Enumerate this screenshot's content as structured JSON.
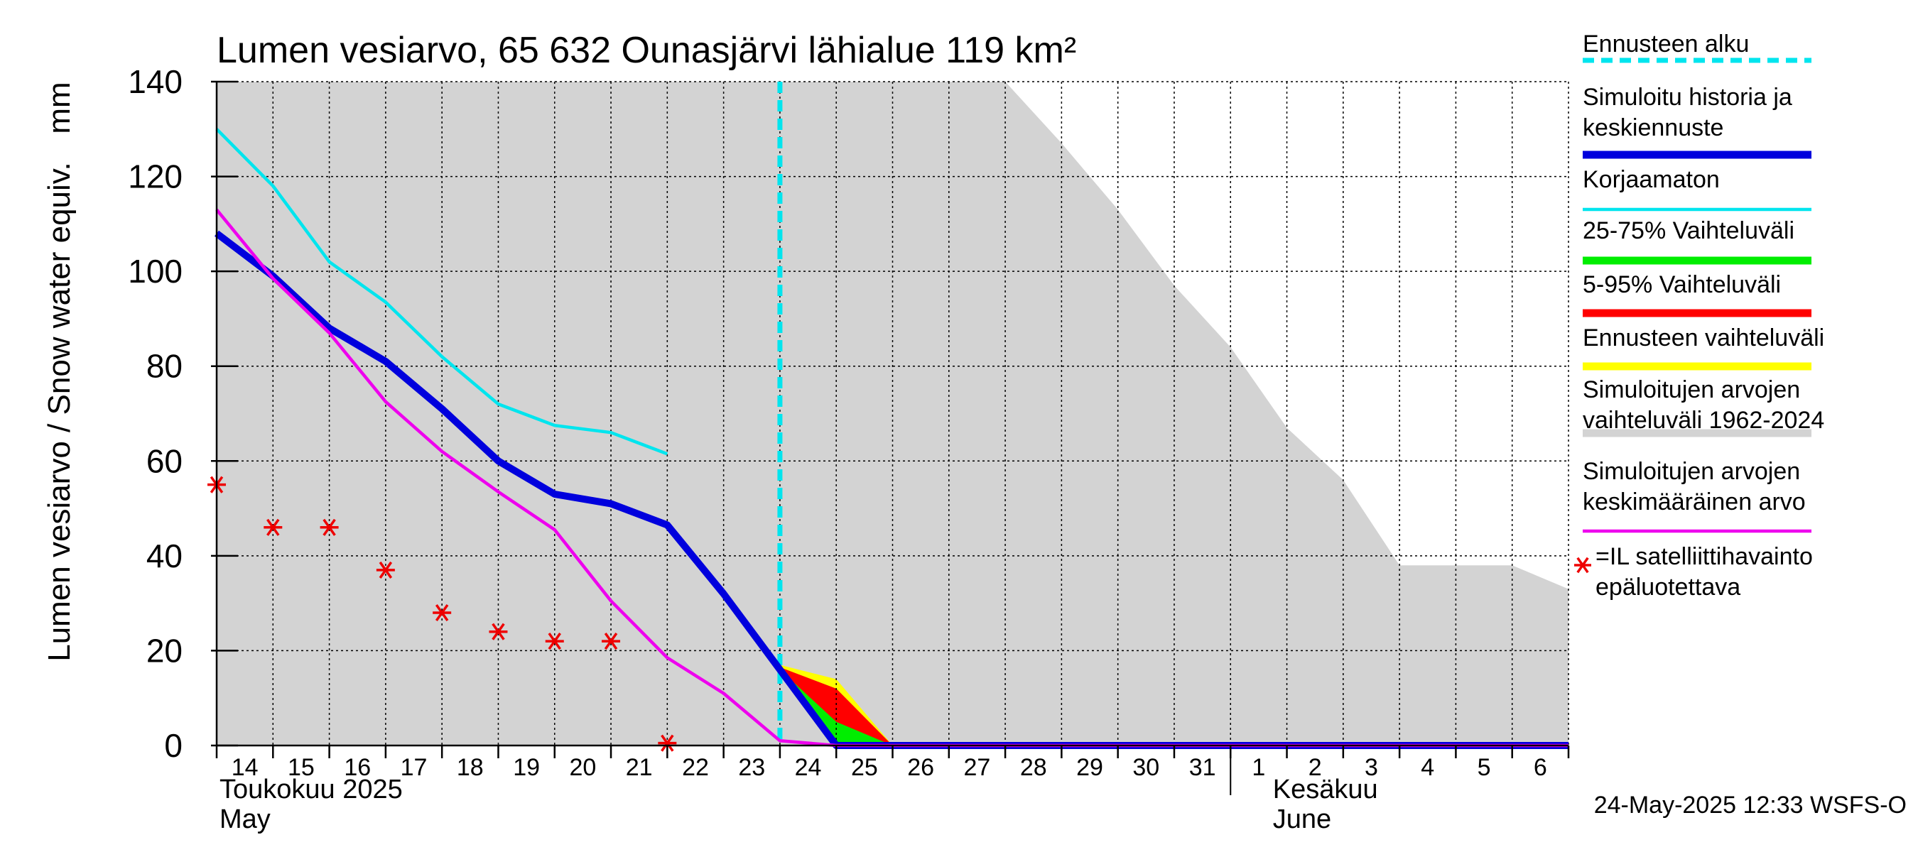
{
  "chart_data": {
    "type": "line",
    "title": "Lumen vesiarvo, 65 632 Ounasjärvi lähialue 119 km²",
    "ylabel": "Lumen vesiarvo / Snow water equiv.",
    "yunit": "mm",
    "ylim": [
      0,
      140
    ],
    "yticks": [
      0,
      20,
      40,
      60,
      80,
      100,
      120,
      140
    ],
    "x_days": [
      "14",
      "15",
      "16",
      "17",
      "18",
      "19",
      "20",
      "21",
      "22",
      "23",
      "24",
      "25",
      "26",
      "27",
      "28",
      "29",
      "30",
      "31",
      "1",
      "2",
      "3",
      "4",
      "5",
      "6"
    ],
    "x_range": [
      0,
      24
    ],
    "month_labels": [
      {
        "name": "Toukokuu  2025",
        "name_en": "May"
      },
      {
        "name": "Kesäkuu",
        "name_en": "June"
      }
    ],
    "month_break_x": 18,
    "grid": true,
    "legend_position": "right",
    "forecast_start_x": 10,
    "series": [
      {
        "name": "Simuloitu historia ja keskiennuste",
        "color": "#0000dd",
        "x": [
          0,
          1,
          2,
          3,
          4,
          5,
          6,
          7,
          8,
          9,
          10,
          11,
          12,
          24
        ],
        "y": [
          108,
          99,
          88,
          81,
          71,
          60,
          53,
          51,
          46.5,
          32,
          16,
          0,
          0,
          0
        ]
      },
      {
        "name": "Korjaamaton",
        "color": "#00e5ee",
        "x": [
          0,
          1,
          2,
          3,
          4,
          5,
          6,
          7,
          8
        ],
        "y": [
          130,
          118,
          102,
          93.5,
          82,
          72,
          67.5,
          66,
          61.5
        ]
      },
      {
        "name": "Simuloitujen arvojen keskimääräinen arvo",
        "color": "#ee00ee",
        "x": [
          0,
          1,
          2,
          3,
          4,
          5,
          6,
          7,
          8,
          9,
          10,
          11,
          12,
          24
        ],
        "y": [
          113,
          98.5,
          87,
          72.5,
          62,
          53.5,
          45.5,
          30.5,
          18.5,
          11,
          1,
          0,
          0,
          0
        ]
      },
      {
        "name": "=IL satelliittihavainto epäluotettava",
        "color": "#ee0000",
        "x": [
          0,
          1,
          2,
          3,
          4,
          5,
          6,
          7,
          8
        ],
        "y": [
          55,
          46,
          46,
          37,
          28,
          24,
          22,
          22,
          0.5
        ]
      }
    ],
    "bands": [
      {
        "name": "Simuloitujen arvojen vaihteluväli 1962-2024",
        "color": "#d3d3d3",
        "x": [
          0,
          1,
          2,
          3,
          4,
          5,
          6,
          7,
          8,
          9,
          10,
          11,
          12,
          13,
          14,
          15,
          16,
          17,
          18,
          19,
          20,
          21,
          22,
          23,
          24
        ],
        "upper": [
          140,
          140,
          140,
          140,
          140,
          140,
          140,
          140,
          140,
          140,
          140,
          140,
          140,
          140,
          140,
          127,
          113,
          97,
          84,
          67,
          56,
          38,
          38,
          38,
          33
        ],
        "lower": [
          0,
          0,
          0,
          0,
          0,
          0,
          0,
          0,
          0,
          0,
          0,
          0,
          0,
          0,
          0,
          0,
          0,
          0,
          0,
          0,
          0,
          0,
          0,
          0,
          0
        ]
      },
      {
        "name": "Ennusteen vaihteluväli",
        "color": "#ffff00",
        "x": [
          10,
          11,
          12
        ],
        "upper": [
          17,
          14,
          0
        ],
        "lower": [
          16,
          0,
          0
        ]
      },
      {
        "name": "5-95% Vaihteluväli",
        "color": "#ff0000",
        "x": [
          10,
          11,
          12
        ],
        "upper": [
          16.5,
          12,
          0
        ],
        "lower": [
          16,
          0,
          0
        ]
      },
      {
        "name": "25-75% Vaihteluväli",
        "color": "#00ee00",
        "x": [
          10,
          11,
          12
        ],
        "upper": [
          16,
          5,
          0
        ],
        "lower": [
          16,
          0,
          0
        ]
      }
    ],
    "legend": [
      {
        "label": "Ennusteen alku",
        "color": "#00e5ee",
        "style": "dashed"
      },
      {
        "label": "Simuloitu historia ja\nkeskiennuste",
        "color": "#0000dd",
        "style": "thick"
      },
      {
        "label": "Korjaamaton",
        "color": "#00e5ee",
        "style": "line"
      },
      {
        "label": "25-75% Vaihteluväli",
        "color": "#00ee00",
        "style": "thick"
      },
      {
        "label": "5-95% Vaihteluväli",
        "color": "#ff0000",
        "style": "thick"
      },
      {
        "label": "Ennusteen vaihteluväli",
        "color": "#ffff00",
        "style": "thick"
      },
      {
        "label": "Simuloitujen arvojen\nvaihteluväli 1962-2024",
        "color": "#d3d3d3",
        "style": "thick"
      },
      {
        "label": "Simuloitujen arvojen\nkeskimääräinen arvo",
        "color": "#ee00ee",
        "style": "line"
      },
      {
        "label": "=IL satelliittihavainto\nepäluotettava",
        "color": "#ee0000",
        "style": "star"
      }
    ],
    "timestamp": "24-May-2025 12:33 WSFS-O"
  }
}
